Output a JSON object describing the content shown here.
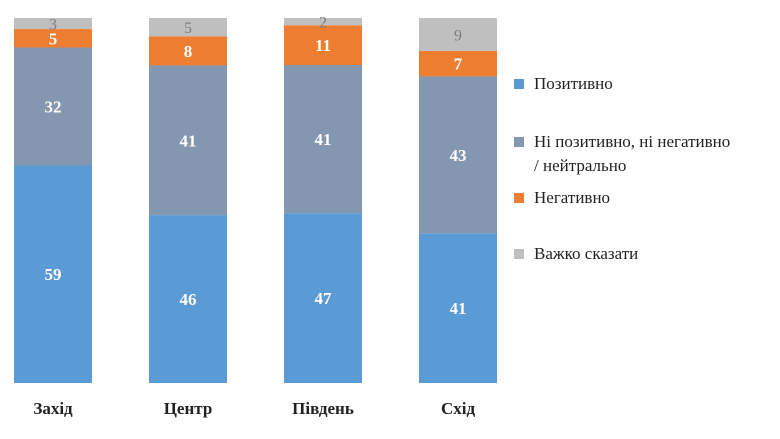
{
  "chart_data": {
    "type": "bar",
    "stacked": true,
    "normalized": true,
    "categories": [
      "Захід",
      "Центр",
      "Південь",
      "Схід"
    ],
    "series": [
      {
        "name": "Позитивно",
        "values": [
          59,
          46,
          47,
          41
        ],
        "color": "#5B9BD5",
        "label_color": "#ffffff"
      },
      {
        "name": "Ні позитивно, ні негативно / нейтрально",
        "values": [
          32,
          41,
          41,
          43
        ],
        "color": "#8497B0",
        "label_color": "#ffffff"
      },
      {
        "name": "Негативно",
        "values": [
          5,
          8,
          11,
          7
        ],
        "color": "#ED7D31",
        "label_color": "#ffffff"
      },
      {
        "name": "Важко сказати",
        "values": [
          3,
          5,
          2,
          9
        ],
        "color": "#BFBFBF",
        "label_color": "#7F7F7F"
      }
    ],
    "legend_position": "right",
    "grid": false
  },
  "legend": {
    "items": [
      {
        "label_line1": "Позитивно",
        "label_line2": ""
      },
      {
        "label_line1": "Ні позитивно, ні негативно",
        "label_line2": "/ нейтрально"
      },
      {
        "label_line1": "Негативно",
        "label_line2": ""
      },
      {
        "label_line1": "Важко сказати",
        "label_line2": ""
      }
    ]
  }
}
